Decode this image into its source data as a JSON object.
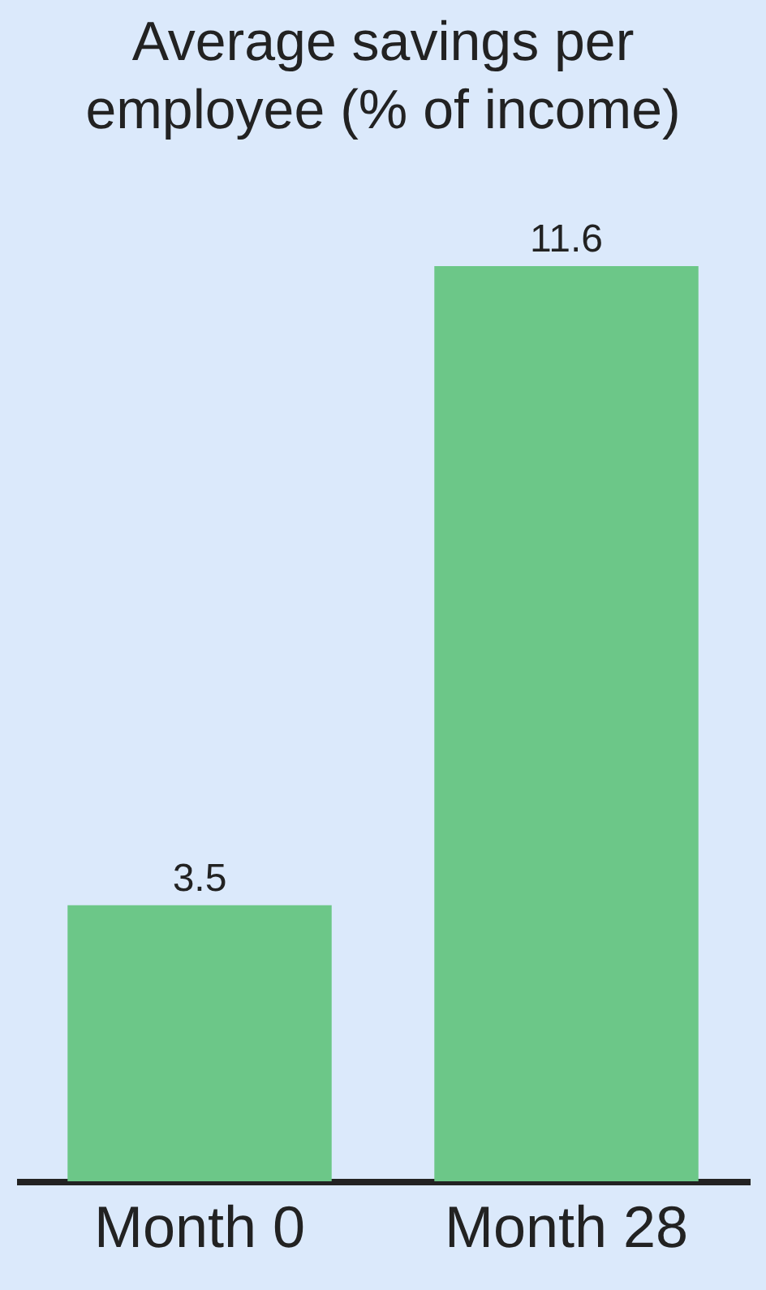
{
  "chart_data": {
    "type": "bar",
    "title": "Average savings per employee (% of income)",
    "categories": [
      "Month 0",
      "Month 28"
    ],
    "values": [
      3.5,
      11.6
    ],
    "color": "#6cc788",
    "data_labels": true,
    "grid": false
  }
}
